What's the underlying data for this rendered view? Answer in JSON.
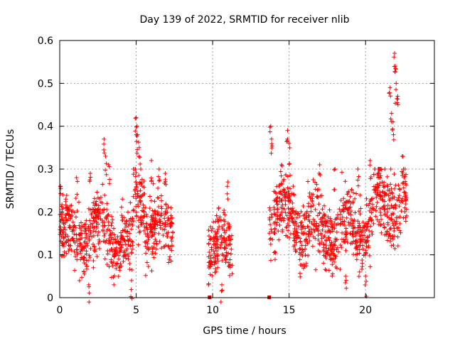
{
  "chart_data": {
    "type": "scatter",
    "title": "Day 139 of 2022, SRMTID for receiver nlib",
    "xlabel": "GPS time / hours",
    "ylabel": "SRMTID / TECUs",
    "xlim": [
      0,
      24.5
    ],
    "ylim": [
      0,
      0.6
    ],
    "xticks": [
      0,
      5,
      10,
      15,
      20
    ],
    "xtick_labels": [
      "0",
      "5",
      "10",
      "15",
      "20"
    ],
    "yticks": [
      0,
      0.1,
      0.2,
      0.3,
      0.4,
      0.5,
      0.6
    ],
    "ytick_labels": [
      "0",
      "0.1",
      "0.2",
      "0.3",
      "0.4",
      "0.5",
      "0.6"
    ],
    "grid": true,
    "marker": "plus",
    "color": "#ff0000",
    "data_gap_markers_x": [
      9.8,
      13.7
    ],
    "segments": [
      {
        "x_start": 0.0,
        "x_end": 1.5,
        "mean": 0.14,
        "spread": 0.05,
        "peaks": [
          [
            0.05,
            0.26
          ],
          [
            0.2,
            0.24
          ],
          [
            0.4,
            0.23
          ],
          [
            1.1,
            0.28
          ]
        ]
      },
      {
        "x_start": 1.5,
        "x_end": 3.5,
        "mean": 0.15,
        "spread": 0.06,
        "peaks": [
          [
            2.0,
            0.29
          ],
          [
            2.9,
            0.37
          ],
          [
            3.0,
            0.33
          ],
          [
            3.2,
            0.31
          ],
          [
            1.9,
            0.03
          ]
        ]
      },
      {
        "x_start": 3.5,
        "x_end": 4.8,
        "mean": 0.12,
        "spread": 0.045,
        "peaks": [
          [
            4.1,
            0.23
          ],
          [
            4.7,
            0.04
          ]
        ]
      },
      {
        "x_start": 4.8,
        "x_end": 5.6,
        "mean": 0.24,
        "spread": 0.06,
        "peaks": [
          [
            5.0,
            0.42
          ],
          [
            5.05,
            0.4
          ],
          [
            5.1,
            0.38
          ],
          [
            5.2,
            0.35
          ]
        ]
      },
      {
        "x_start": 5.6,
        "x_end": 7.4,
        "mean": 0.16,
        "spread": 0.05,
        "peaks": [
          [
            6.0,
            0.32
          ],
          [
            6.5,
            0.3
          ],
          [
            6.9,
            0.29
          ]
        ]
      },
      {
        "x_start": 9.7,
        "x_end": 11.3,
        "mean": 0.12,
        "spread": 0.045,
        "peaks": [
          [
            10.4,
            0.21
          ],
          [
            11.0,
            0.27
          ],
          [
            10.6,
            0.03
          ]
        ]
      },
      {
        "x_start": 13.7,
        "x_end": 15.3,
        "mean": 0.19,
        "spread": 0.06,
        "peaks": [
          [
            13.8,
            0.4
          ],
          [
            13.85,
            0.37
          ],
          [
            14.9,
            0.39
          ],
          [
            15.0,
            0.36
          ],
          [
            14.5,
            0.31
          ]
        ]
      },
      {
        "x_start": 15.3,
        "x_end": 18.8,
        "mean": 0.16,
        "spread": 0.055,
        "peaks": [
          [
            17.0,
            0.31
          ],
          [
            18.0,
            0.3
          ],
          [
            18.7,
            0.05
          ]
        ]
      },
      {
        "x_start": 18.8,
        "x_end": 20.5,
        "mean": 0.17,
        "spread": 0.06,
        "peaks": [
          [
            19.5,
            0.3
          ],
          [
            20.3,
            0.32
          ],
          [
            20.0,
            0.05
          ]
        ]
      },
      {
        "x_start": 20.5,
        "x_end": 22.7,
        "mean": 0.22,
        "spread": 0.065,
        "peaks": [
          [
            21.6,
            0.49
          ],
          [
            21.9,
            0.57
          ],
          [
            21.95,
            0.54
          ],
          [
            22.0,
            0.5
          ],
          [
            22.1,
            0.47
          ],
          [
            21.7,
            0.43
          ],
          [
            21.8,
            0.41
          ],
          [
            22.4,
            0.33
          ]
        ]
      }
    ]
  }
}
